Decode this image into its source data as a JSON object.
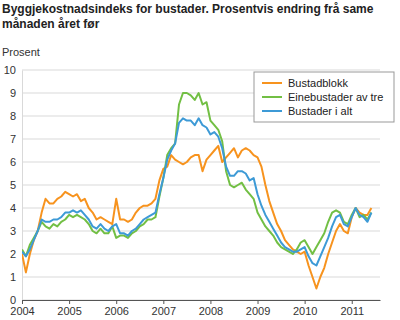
{
  "chart_data": {
    "type": "line",
    "title": "Byggjekostnadsindeks for bustader. Prosentvis endring frå same månaden året før",
    "ylabel": "Prosent",
    "x": [
      2004.0,
      2004.083,
      2004.167,
      2004.25,
      2004.333,
      2004.417,
      2004.5,
      2004.583,
      2004.667,
      2004.75,
      2004.833,
      2004.917,
      2005.0,
      2005.083,
      2005.167,
      2005.25,
      2005.333,
      2005.417,
      2005.5,
      2005.583,
      2005.667,
      2005.75,
      2005.833,
      2005.917,
      2006.0,
      2006.083,
      2006.167,
      2006.25,
      2006.333,
      2006.417,
      2006.5,
      2006.583,
      2006.667,
      2006.75,
      2006.833,
      2006.917,
      2007.0,
      2007.083,
      2007.167,
      2007.25,
      2007.333,
      2007.417,
      2007.5,
      2007.583,
      2007.667,
      2007.75,
      2007.833,
      2007.917,
      2008.0,
      2008.083,
      2008.167,
      2008.25,
      2008.333,
      2008.417,
      2008.5,
      2008.583,
      2008.667,
      2008.75,
      2008.833,
      2008.917,
      2009.0,
      2009.083,
      2009.167,
      2009.25,
      2009.333,
      2009.417,
      2009.5,
      2009.583,
      2009.667,
      2009.75,
      2009.833,
      2009.917,
      2010.0,
      2010.083,
      2010.167,
      2010.25,
      2010.333,
      2010.417,
      2010.5,
      2010.583,
      2010.667,
      2010.75,
      2010.833,
      2010.917,
      2011.0,
      2011.083,
      2011.167,
      2011.25,
      2011.333,
      2011.417
    ],
    "series": [
      {
        "name": "Bustadblokk",
        "color": "#f7931e",
        "values": [
          2.0,
          1.2,
          2.0,
          2.6,
          3.0,
          3.8,
          4.4,
          4.2,
          4.2,
          4.4,
          4.5,
          4.7,
          4.6,
          4.5,
          4.6,
          4.3,
          4.4,
          4.0,
          3.8,
          3.5,
          3.6,
          3.5,
          3.4,
          3.3,
          4.4,
          3.5,
          3.5,
          3.4,
          3.5,
          3.8,
          4.0,
          4.1,
          4.1,
          4.2,
          4.4,
          5.2,
          5.7,
          5.8,
          6.3,
          6.1,
          6.0,
          5.9,
          6.0,
          6.2,
          6.3,
          6.3,
          5.6,
          6.1,
          6.3,
          6.5,
          6.7,
          6.0,
          6.2,
          6.4,
          6.6,
          6.2,
          6.5,
          6.6,
          6.5,
          6.3,
          6.2,
          5.8,
          5.0,
          4.3,
          3.8,
          3.3,
          3.0,
          2.6,
          2.4,
          2.2,
          2.1,
          2.0,
          2.1,
          1.5,
          1.0,
          0.5,
          1.0,
          1.4,
          2.0,
          2.5,
          3.0,
          3.3,
          3.0,
          2.9,
          3.6,
          4.0,
          3.8,
          3.7,
          3.7,
          4.0
        ]
      },
      {
        "name": "Einebustader av tre",
        "color": "#72bf44",
        "values": [
          2.2,
          1.9,
          2.4,
          2.7,
          3.0,
          3.4,
          3.2,
          3.1,
          3.3,
          3.2,
          3.4,
          3.5,
          3.7,
          3.6,
          3.7,
          3.6,
          3.5,
          3.3,
          3.0,
          2.9,
          3.1,
          2.9,
          2.9,
          3.2,
          2.7,
          2.8,
          2.8,
          2.7,
          2.9,
          3.0,
          3.2,
          3.3,
          3.5,
          3.5,
          3.6,
          4.5,
          5.3,
          6.3,
          6.6,
          6.8,
          8.5,
          9.0,
          9.0,
          8.9,
          8.7,
          9.0,
          8.5,
          8.6,
          7.8,
          7.6,
          7.4,
          6.9,
          5.6,
          5.0,
          4.9,
          5.0,
          5.1,
          4.8,
          4.6,
          4.4,
          3.8,
          3.5,
          3.2,
          3.0,
          2.8,
          2.5,
          2.3,
          2.2,
          2.1,
          2.0,
          2.2,
          2.5,
          2.6,
          2.3,
          2.0,
          2.3,
          2.6,
          2.9,
          3.4,
          3.8,
          3.9,
          3.8,
          3.4,
          3.3,
          3.7,
          4.0,
          3.6,
          3.7,
          3.5,
          3.8
        ]
      },
      {
        "name": "Bustader i alt",
        "color": "#3d9ad6",
        "values": [
          2.1,
          1.9,
          2.2,
          2.6,
          3.0,
          3.5,
          3.4,
          3.4,
          3.5,
          3.5,
          3.6,
          3.8,
          3.8,
          3.9,
          3.8,
          3.9,
          3.7,
          3.5,
          3.2,
          3.1,
          3.3,
          3.1,
          3.0,
          3.2,
          3.3,
          2.9,
          2.9,
          2.8,
          3.0,
          3.1,
          3.3,
          3.5,
          3.6,
          3.7,
          3.8,
          4.6,
          5.3,
          6.1,
          6.5,
          6.8,
          7.7,
          7.9,
          7.8,
          7.8,
          7.6,
          7.9,
          7.6,
          7.5,
          7.2,
          7.3,
          7.1,
          6.6,
          5.8,
          5.4,
          5.4,
          5.6,
          5.6,
          5.5,
          5.2,
          5.3,
          4.6,
          4.1,
          3.7,
          3.4,
          3.1,
          2.8,
          2.5,
          2.3,
          2.2,
          2.1,
          2.1,
          2.2,
          2.3,
          1.9,
          1.6,
          1.5,
          1.9,
          2.3,
          2.7,
          3.2,
          3.6,
          3.7,
          3.3,
          3.2,
          3.6,
          4.0,
          3.7,
          3.6,
          3.4,
          3.8
        ]
      }
    ],
    "xlim": [
      2004,
      2011.6
    ],
    "xticks": [
      2004,
      2005,
      2006,
      2007,
      2008,
      2009,
      2010,
      2011
    ],
    "ylim": [
      0,
      10
    ],
    "yticks": [
      0,
      1,
      2,
      3,
      4,
      5,
      6,
      7,
      8,
      9,
      10
    ],
    "grid": true,
    "legend": "upper right"
  }
}
